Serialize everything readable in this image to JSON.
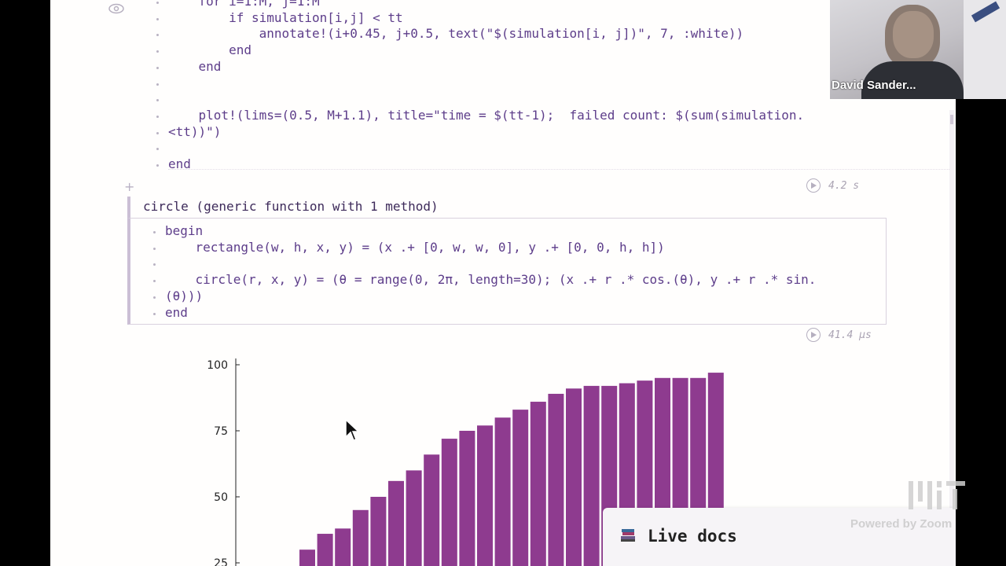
{
  "code_top": {
    "lines": [
      "    for i=1:M, j=1:M",
      "        if simulation[i,j] < tt",
      "            annotate!(i+0.45, j+0.5, text(\"$(simulation[i, j])\", 7, :white))",
      "        end",
      "    end",
      "",
      "",
      "    plot!(lims=(0.5, M+1.1), title=\"time = $(tt-1);  failed count: $(sum(simulation.",
      "<tt))\")",
      "",
      "end"
    ],
    "timing": "4.2 s"
  },
  "output": {
    "text": "circle (generic function with 1 method)"
  },
  "code_cell": {
    "lines": [
      "begin",
      "    rectangle(w, h, x, y) = (x .+ [0, w, w, 0], y .+ [0, 0, h, h])",
      "",
      "    circle(r, x, y) = (θ = range(0, 2π, length=30); (x .+ r .* cos.(θ), y .+ r .* sin.",
      "(θ)))",
      "end"
    ],
    "timing": "41.4 μs"
  },
  "chart_data": {
    "type": "bar",
    "values": [
      30,
      36,
      38,
      45,
      50,
      56,
      60,
      66,
      72,
      75,
      77,
      80,
      83,
      86,
      89,
      91,
      92,
      92,
      93,
      94,
      95,
      95,
      95,
      97
    ],
    "yticks": [
      "100",
      "75",
      "50",
      "25"
    ],
    "ylim": [
      25,
      100
    ],
    "bar_color": "#8e3b8f",
    "grid": false
  },
  "video": {
    "participant_name": "David Sander..."
  },
  "live_docs": {
    "label": "Live docs"
  },
  "watermark": {
    "zoom": "Powered by Zoom"
  },
  "colors": {
    "code_text": "#5d3d8a",
    "page_bg": "#fffefd",
    "cell_border": "#cbbfd5"
  }
}
